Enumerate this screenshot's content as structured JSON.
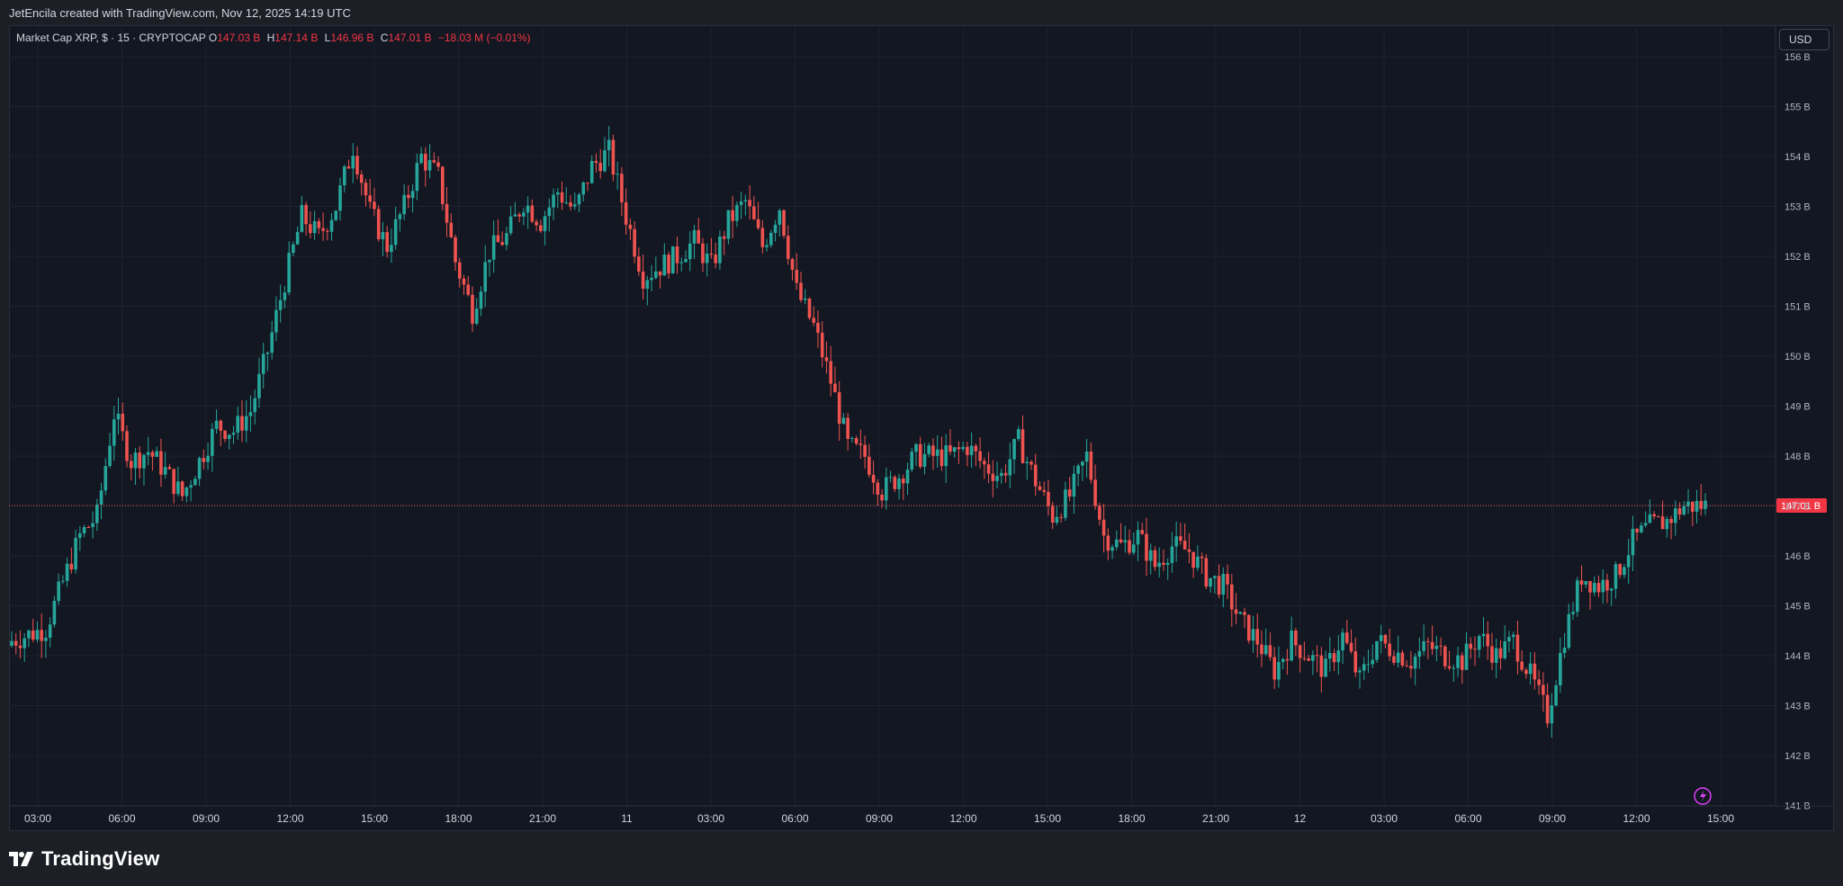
{
  "header": {
    "credit": "JetEncila created with TradingView.com, Nov 12, 2025 14:19 UTC"
  },
  "legend": {
    "symbol": "Market Cap XRP, $ · 15 · CRYPTOCAP",
    "o_label": "O",
    "o_value": "147.03 B",
    "h_label": "H",
    "h_value": "147.14 B",
    "l_label": "L",
    "l_value": "146.96 B",
    "c_label": "C",
    "c_value": "147.01 B",
    "change": "−18.03 M (−0.01%)"
  },
  "currency": "USD",
  "brand": {
    "name": "TradingView"
  },
  "colors": {
    "background": "#131722",
    "up": "#26a69a",
    "down": "#ef5350",
    "grid": "#1e2230",
    "price_line": "#ef5350",
    "price_label_bg": "#f23645",
    "alert_icon": "#e040fb"
  },
  "chart_data": {
    "type": "candlestick",
    "symbol": "Market Cap XRP",
    "interval": "15",
    "unit": "B",
    "ylim": [
      141,
      156
    ],
    "y_ticks": [
      "156 B",
      "155 B",
      "154 B",
      "153 B",
      "152 B",
      "151 B",
      "150 B",
      "149 B",
      "148 B",
      "147 B",
      "146 B",
      "145 B",
      "144 B",
      "143 B",
      "142 B",
      "141 B"
    ],
    "x_ticks": [
      "03:00",
      "06:00",
      "09:00",
      "12:00",
      "15:00",
      "18:00",
      "21:00",
      "11",
      "03:00",
      "06:00",
      "09:00",
      "12:00",
      "15:00",
      "18:00",
      "21:00",
      "12",
      "03:00",
      "06:00",
      "09:00",
      "12:00",
      "15:00"
    ],
    "current_price": 147.01,
    "current_price_label": "147.01 B",
    "close_path": [
      [
        0,
        144.3
      ],
      [
        4,
        144.55
      ],
      [
        8,
        146.4
      ],
      [
        10,
        146.8
      ],
      [
        12,
        148.85
      ],
      [
        14,
        147.9
      ],
      [
        16,
        148.1
      ],
      [
        18,
        147.7
      ],
      [
        20,
        147.2
      ],
      [
        22,
        147.9
      ],
      [
        24,
        148.6
      ],
      [
        26,
        148.5
      ],
      [
        28,
        148.9
      ],
      [
        30,
        150.1
      ],
      [
        32,
        151.5
      ],
      [
        34,
        152.8
      ],
      [
        36,
        152.4
      ],
      [
        38,
        153.0
      ],
      [
        40,
        154.2
      ],
      [
        42,
        152.9
      ],
      [
        44,
        152.2
      ],
      [
        46,
        153.0
      ],
      [
        48,
        154.0
      ],
      [
        50,
        153.6
      ],
      [
        52,
        151.9
      ],
      [
        54,
        150.9
      ],
      [
        56,
        152.1
      ],
      [
        58,
        152.4
      ],
      [
        60,
        153.1
      ],
      [
        62,
        152.7
      ],
      [
        64,
        153.3
      ],
      [
        66,
        152.9
      ],
      [
        68,
        153.8
      ],
      [
        70,
        154.1
      ],
      [
        72,
        152.8
      ],
      [
        74,
        151.6
      ],
      [
        76,
        151.8
      ],
      [
        78,
        152.0
      ],
      [
        80,
        152.3
      ],
      [
        82,
        151.8
      ],
      [
        84,
        152.7
      ],
      [
        86,
        153.1
      ],
      [
        88,
        152.2
      ],
      [
        90,
        153.0
      ],
      [
        92,
        151.3
      ],
      [
        94,
        150.6
      ],
      [
        96,
        149.5
      ],
      [
        98,
        148.2
      ],
      [
        100,
        148.0
      ],
      [
        102,
        147.3
      ],
      [
        104,
        147.6
      ],
      [
        106,
        148.0
      ],
      [
        108,
        148.0
      ],
      [
        110,
        148.0
      ],
      [
        112,
        148.2
      ],
      [
        114,
        147.8
      ],
      [
        116,
        147.6
      ],
      [
        118,
        148.3
      ],
      [
        120,
        147.5
      ],
      [
        122,
        146.8
      ],
      [
        124,
        147.2
      ],
      [
        126,
        148.0
      ],
      [
        128,
        146.4
      ],
      [
        130,
        146.2
      ],
      [
        132,
        146.4
      ],
      [
        134,
        145.8
      ],
      [
        136,
        146.2
      ],
      [
        138,
        146.1
      ],
      [
        140,
        145.6
      ],
      [
        142,
        145.4
      ],
      [
        144,
        144.7
      ],
      [
        146,
        144.3
      ],
      [
        148,
        143.7
      ],
      [
        150,
        144.3
      ],
      [
        152,
        144.0
      ],
      [
        154,
        143.7
      ],
      [
        156,
        144.4
      ],
      [
        158,
        143.5
      ],
      [
        160,
        144.3
      ],
      [
        162,
        144.1
      ],
      [
        164,
        143.9
      ],
      [
        166,
        144.2
      ],
      [
        168,
        144.0
      ],
      [
        170,
        143.9
      ],
      [
        172,
        144.4
      ],
      [
        174,
        144.0
      ],
      [
        176,
        144.3
      ],
      [
        178,
        143.6
      ],
      [
        180,
        142.8
      ],
      [
        182,
        144.4
      ],
      [
        184,
        145.6
      ],
      [
        186,
        145.4
      ],
      [
        188,
        145.6
      ],
      [
        190,
        146.3
      ],
      [
        192,
        146.6
      ],
      [
        194,
        146.7
      ],
      [
        196,
        147.0
      ],
      [
        198,
        147.01
      ]
    ]
  }
}
